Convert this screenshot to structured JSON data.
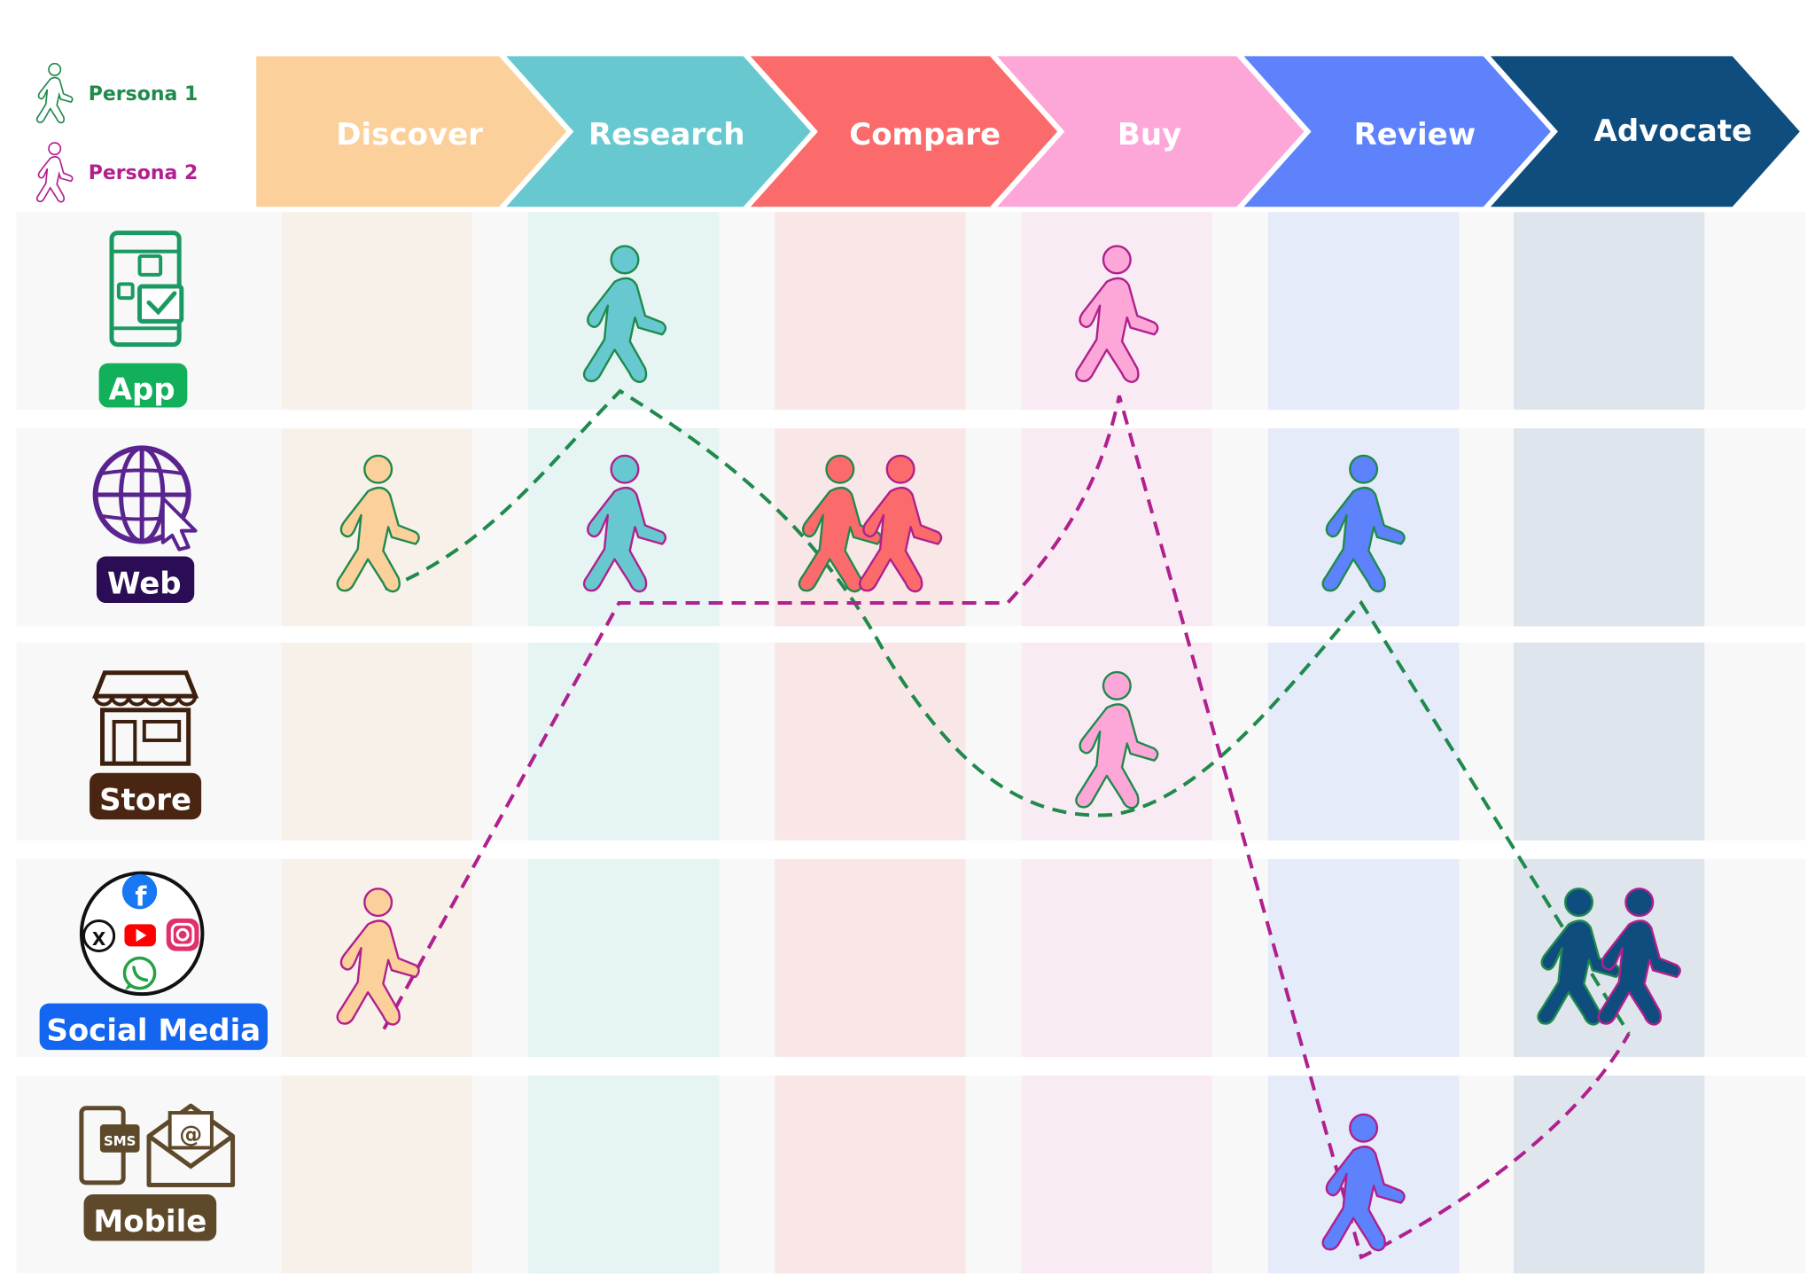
{
  "legend": [
    {
      "label": "Persona 1",
      "color": "#1f8a4c"
    },
    {
      "label": "Persona 2",
      "color": "#b0208e"
    }
  ],
  "stages": [
    {
      "label": "Discover",
      "color": "#fcd09b",
      "tint": "#f8f1ea"
    },
    {
      "label": "Research",
      "color": "#67c9cf",
      "tint": "#e6f4f4"
    },
    {
      "label": "Compare",
      "color": "#fb6b6b",
      "tint": "#f9e7e7"
    },
    {
      "label": "Buy",
      "color": "#fda7d8",
      "tint": "#f9ebf3"
    },
    {
      "label": "Review",
      "color": "#5d82fb",
      "tint": "#e6ebfa"
    },
    {
      "label": "Advocate",
      "color": "#0e4d7e",
      "tint": "#dfe5ec"
    }
  ],
  "channels": [
    {
      "label": "App",
      "badge_color": "#12b05a",
      "icon": "mobile-app-icon"
    },
    {
      "label": "Web",
      "badge_color": "#2b0d55",
      "icon": "globe-cursor-icon"
    },
    {
      "label": "Store",
      "badge_color": "#4a2512",
      "icon": "storefront-icon"
    },
    {
      "label": "Social Media",
      "badge_color": "#1466f0",
      "icon": "social-media-icon"
    },
    {
      "label": "Mobile",
      "badge_color": "#5e4a2b",
      "icon": "sms-email-icon"
    }
  ],
  "sms_text": "SMS",
  "persona1_path": [
    {
      "stage": "Discover",
      "channel": "Web"
    },
    {
      "stage": "Research",
      "channel": "App"
    },
    {
      "stage": "Compare",
      "channel": "Web"
    },
    {
      "stage": "Buy",
      "channel": "Store"
    },
    {
      "stage": "Review",
      "channel": "Web"
    },
    {
      "stage": "Advocate",
      "channel": "Social Media"
    }
  ],
  "persona2_path": [
    {
      "stage": "Discover",
      "channel": "Social Media"
    },
    {
      "stage": "Research",
      "channel": "Web"
    },
    {
      "stage": "Compare",
      "channel": "Web"
    },
    {
      "stage": "Buy",
      "channel": "App"
    },
    {
      "stage": "Review",
      "channel": "Mobile"
    },
    {
      "stage": "Advocate",
      "channel": "Social Media"
    }
  ]
}
